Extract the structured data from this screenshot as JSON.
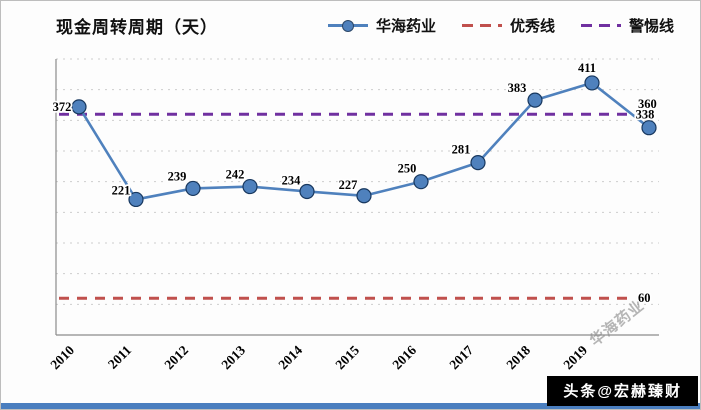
{
  "title": "现金周转周期（天）",
  "legend": [
    {
      "label": "华海药业",
      "color": "#4f81bd",
      "style": "solid-marker"
    },
    {
      "label": "优秀线",
      "color": "#c0504d",
      "style": "dashed"
    },
    {
      "label": "警惕线",
      "color": "#7030a0",
      "style": "dashed"
    }
  ],
  "watermark": "华海药业",
  "badge": "头条@宏赫臻财",
  "chart_data": {
    "type": "line",
    "title": "现金周转周期（天）",
    "categories": [
      "2010",
      "2011",
      "2012",
      "2013",
      "2014",
      "2015",
      "2016",
      "2017",
      "2018",
      "2019",
      ""
    ],
    "series": [
      {
        "name": "华海药业",
        "color": "#4f81bd",
        "marker_edge_color": "#17375e",
        "values": [
          372,
          221,
          239,
          242,
          234,
          227,
          250,
          281,
          383,
          411,
          338
        ]
      }
    ],
    "reference_lines": [
      {
        "name": "警惕线",
        "value": 360,
        "label": "360",
        "color": "#7030a0",
        "style": "dashed"
      },
      {
        "name": "优秀线",
        "value": 60,
        "label": "60",
        "color": "#c0504d",
        "style": "dashed"
      }
    ],
    "ylim": [
      0,
      450
    ],
    "y_step": 50,
    "grid": true,
    "y_tick_labels_visible": false,
    "legend_position": "top-right",
    "x_axis_label_rotation": -45
  }
}
